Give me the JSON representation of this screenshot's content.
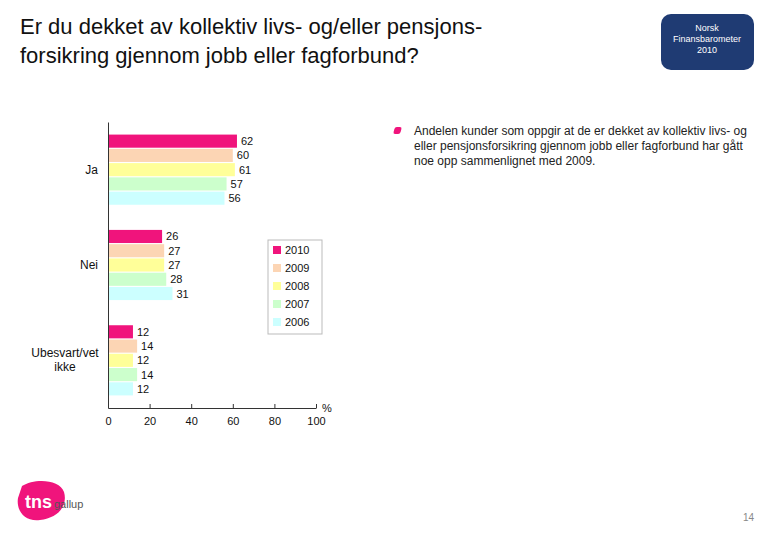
{
  "chart_data": {
    "type": "bar",
    "orientation": "horizontal",
    "title": "Er du dekket av kollektiv livs- og/eller pensjons-\nforsikring gjennom jobb eller fagforbund?",
    "annotations": [
      "Andelen kunder som oppgir at de er dekket av kollektiv livs- og eller pensjonsforsikring gjennom jobb eller fagforbund har gått noe opp sammenlignet med 2009."
    ],
    "categories": [
      "Ja",
      "Nei",
      "Ubesvart/vet ikke"
    ],
    "series": [
      {
        "name": "2010",
        "color": "#f0147c",
        "values": [
          62,
          26,
          12
        ]
      },
      {
        "name": "2009",
        "color": "#fcd5b4",
        "values": [
          60,
          27,
          14
        ]
      },
      {
        "name": "2008",
        "color": "#ffff99",
        "values": [
          61,
          27,
          12
        ]
      },
      {
        "name": "2007",
        "color": "#ccffcc",
        "values": [
          57,
          28,
          14
        ]
      },
      {
        "name": "2006",
        "color": "#ccffff",
        "values": [
          56,
          31,
          12
        ]
      }
    ],
    "xlabel": "%",
    "xlim": [
      0,
      100
    ],
    "xticks": [
      0,
      20,
      40,
      60,
      80,
      100
    ],
    "grid": false,
    "legend": "right",
    "data_labels": true
  },
  "page": {
    "badge": "Norsk Finansbarometer 2010",
    "logo": "tns gallup",
    "page_number": 14
  }
}
